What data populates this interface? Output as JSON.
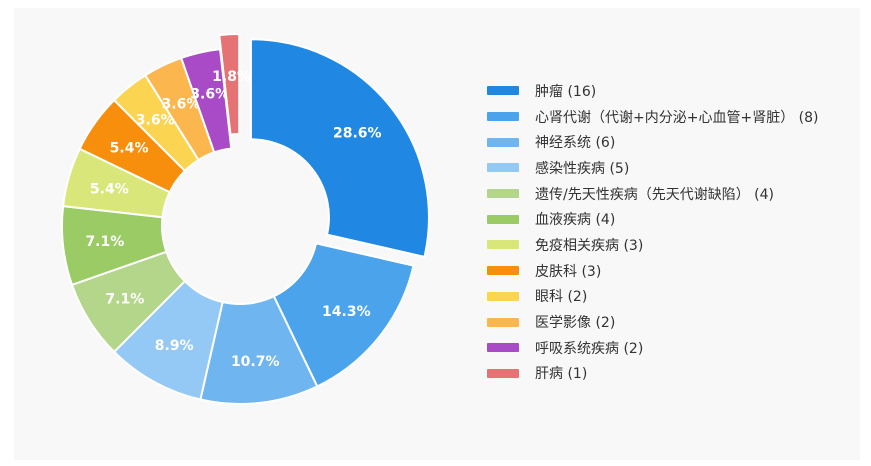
{
  "chart_data": {
    "type": "pie",
    "variant": "donut",
    "unit": "%",
    "exploded": [
      "肿瘤",
      "肝病"
    ],
    "legend_position": "right",
    "slices": [
      {
        "label": "肿瘤",
        "count": 16,
        "percent": 28.6,
        "pct_label": "28.6%",
        "legend": "肿瘤 (16)",
        "color": "#2088e2"
      },
      {
        "label": "心肾代谢（代谢+内分泌+心血管+肾脏）",
        "count": 8,
        "percent": 14.3,
        "pct_label": "14.3%",
        "legend": "心肾代谢（代谢+内分泌+心血管+肾脏） (8)",
        "color": "#4ba3ec"
      },
      {
        "label": "神经系统",
        "count": 6,
        "percent": 10.7,
        "pct_label": "10.7%",
        "legend": "神经系统 (6)",
        "color": "#6fb6f0"
      },
      {
        "label": "感染性疾病",
        "count": 5,
        "percent": 8.9,
        "pct_label": "8.9%",
        "legend": "感染性疾病 (5)",
        "color": "#94c9f5"
      },
      {
        "label": "遗传/先天性疾病（先天代谢缺陷）",
        "count": 4,
        "percent": 7.1,
        "pct_label": "7.1%",
        "legend": "遗传/先天性疾病（先天代谢缺陷） (4)",
        "color": "#b3d68a"
      },
      {
        "label": "血液疾病",
        "count": 4,
        "percent": 7.1,
        "pct_label": "7.1%",
        "legend": "血液疾病 (4)",
        "color": "#9bcb64"
      },
      {
        "label": "免疫相关疾病",
        "count": 3,
        "percent": 5.4,
        "pct_label": "5.4%",
        "legend": "免疫相关疾病 (3)",
        "color": "#d9e77a"
      },
      {
        "label": "皮肤科",
        "count": 3,
        "percent": 5.4,
        "pct_label": "5.4%",
        "legend": "皮肤科 (3)",
        "color": "#f78e0c"
      },
      {
        "label": "眼科",
        "count": 2,
        "percent": 3.6,
        "pct_label": "3.6%",
        "legend": "眼科 (2)",
        "color": "#fbd451"
      },
      {
        "label": "医学影像",
        "count": 2,
        "percent": 3.6,
        "pct_label": "3.6%",
        "legend": "医学影像 (2)",
        "color": "#fbb64e"
      },
      {
        "label": "呼吸系统疾病",
        "count": 2,
        "percent": 3.6,
        "pct_label": "3.6%",
        "legend": "呼吸系统疾病 (2)",
        "color": "#a94bc6"
      },
      {
        "label": "肝病",
        "count": 1,
        "percent": 1.8,
        "pct_label": "1.8%",
        "legend": "肝病 (1)",
        "color": "#e57373"
      }
    ]
  }
}
